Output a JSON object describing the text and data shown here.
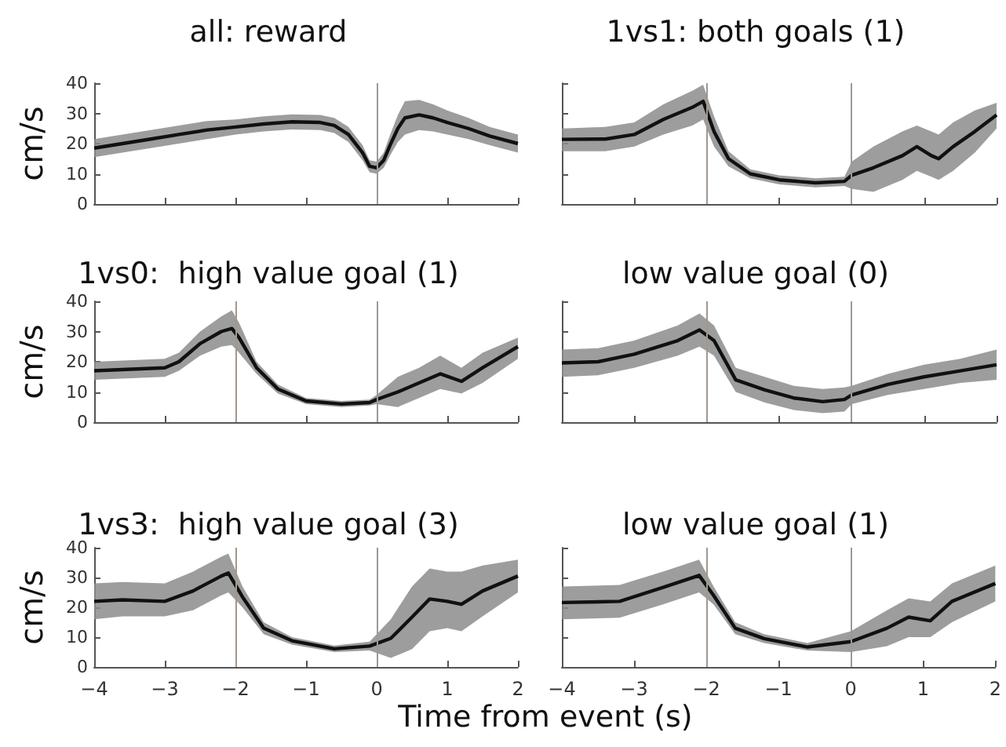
{
  "chart_data": [
    {
      "type": "line",
      "title": "all: reward",
      "ylabel": "cm/s",
      "xlim": [
        -4,
        2
      ],
      "ylim": [
        0,
        40
      ],
      "xticks": [
        -4,
        -3,
        -2,
        -1,
        0,
        1,
        2
      ],
      "yticks": [
        0,
        10,
        20,
        30,
        40
      ],
      "tick_labels": "y",
      "grid": false,
      "ref_lines": [
        {
          "axis": "x",
          "value": 0,
          "color": "#a09890"
        }
      ],
      "series": [
        {
          "color": "#111111",
          "x": [
            -4,
            -3.6,
            -3.2,
            -2.8,
            -2.4,
            -2,
            -1.6,
            -1.2,
            -0.8,
            -0.6,
            -0.4,
            -0.2,
            -0.1,
            0,
            0.1,
            0.2,
            0.3,
            0.4,
            0.6,
            0.8,
            1,
            1.3,
            1.6,
            2
          ],
          "values": [
            18.5,
            20,
            21.5,
            23,
            24.5,
            25.5,
            26.5,
            27.2,
            27,
            26,
            23,
            17,
            12.5,
            12,
            14.5,
            20,
            25,
            28.5,
            29.5,
            28.5,
            27,
            25,
            22.5,
            20
          ],
          "lower": [
            15.5,
            17,
            18.5,
            20,
            21.5,
            23,
            24,
            24.7,
            24.5,
            23.5,
            20.5,
            14.5,
            10.5,
            10,
            12,
            16.5,
            20.5,
            23,
            24.5,
            24,
            23,
            21.5,
            19.5,
            17
          ],
          "upper": [
            21.5,
            23,
            24.5,
            26,
            27.5,
            28,
            29,
            29.7,
            29.5,
            28.5,
            25.5,
            19.5,
            14.5,
            14,
            17,
            23.5,
            29.5,
            34,
            34.5,
            33,
            31,
            28.5,
            25.5,
            23
          ]
        }
      ]
    },
    {
      "type": "line",
      "title": "1vs1: both goals (1)",
      "xlim": [
        -4,
        2
      ],
      "ylim": [
        0,
        40
      ],
      "xticks": [
        -4,
        -3,
        -2,
        -1,
        0,
        1,
        2
      ],
      "yticks": [
        0,
        10,
        20,
        30,
        40
      ],
      "tick_labels": false,
      "grid": false,
      "ref_lines": [
        {
          "axis": "x",
          "value": -2,
          "color": "#a09890"
        },
        {
          "axis": "x",
          "value": 0,
          "color": "#a09890"
        }
      ],
      "series": [
        {
          "color": "#111111",
          "x": [
            -4,
            -3.4,
            -3,
            -2.6,
            -2.2,
            -2.05,
            -1.9,
            -1.7,
            -1.4,
            -1,
            -0.5,
            -0.1,
            0,
            0.3,
            0.7,
            0.9,
            1.1,
            1.2,
            1.4,
            1.7,
            2
          ],
          "values": [
            21.4,
            21.5,
            23,
            28,
            32,
            34,
            24,
            15,
            10,
            8,
            7,
            7.5,
            9.5,
            12,
            16,
            19,
            16,
            15,
            19,
            24,
            29.5
          ],
          "lower": [
            17.5,
            17.5,
            19,
            23,
            26,
            28,
            19,
            12.5,
            8.5,
            6.5,
            5.5,
            6,
            5,
            4,
            8,
            11,
            9,
            8,
            11,
            17,
            25
          ],
          "upper": [
            25,
            25.5,
            27,
            33,
            37.5,
            39.5,
            29,
            17.5,
            11.5,
            9.5,
            8.5,
            9,
            14,
            19,
            24,
            26,
            24,
            23,
            27,
            31,
            33.5
          ]
        }
      ]
    },
    {
      "type": "line",
      "title": "1vs0:  high value goal (1)",
      "ylabel": "cm/s",
      "xlim": [
        -4,
        2
      ],
      "ylim": [
        0,
        40
      ],
      "xticks": [
        -4,
        -3,
        -2,
        -1,
        0,
        1,
        2
      ],
      "yticks": [
        0,
        10,
        20,
        30,
        40
      ],
      "tick_labels": "y",
      "grid": false,
      "ref_lines": [
        {
          "axis": "x",
          "value": -2,
          "color": "#a09890"
        },
        {
          "axis": "x",
          "value": 0,
          "color": "#a09890"
        }
      ],
      "series": [
        {
          "color": "#111111",
          "x": [
            -4,
            -3,
            -2.8,
            -2.5,
            -2.2,
            -2.05,
            -1.95,
            -1.7,
            -1.4,
            -1,
            -0.5,
            -0.1,
            0,
            0.3,
            0.6,
            0.9,
            1.2,
            1.5,
            2
          ],
          "values": [
            17,
            18,
            20,
            26,
            30,
            31,
            28,
            18,
            11,
            7,
            6,
            6.5,
            7.5,
            10,
            13,
            16,
            13.5,
            18,
            25
          ],
          "lower": [
            14,
            15,
            17,
            22,
            25,
            25.5,
            23,
            16,
            9.5,
            6,
            5,
            5.5,
            6,
            5,
            8,
            11,
            9.5,
            13,
            21
          ],
          "upper": [
            20,
            21,
            23,
            30,
            35,
            37,
            33,
            20,
            12.5,
            8,
            7,
            7.5,
            9,
            15,
            18,
            22,
            18,
            23,
            28
          ]
        }
      ]
    },
    {
      "type": "line",
      "title": "low value goal (0)",
      "xlim": [
        -4,
        2
      ],
      "ylim": [
        0,
        40
      ],
      "xticks": [
        -4,
        -3,
        -2,
        -1,
        0,
        1,
        2
      ],
      "yticks": [
        0,
        10,
        20,
        30,
        40
      ],
      "tick_labels": false,
      "grid": false,
      "ref_lines": [
        {
          "axis": "x",
          "value": -2,
          "color": "#a09890"
        },
        {
          "axis": "x",
          "value": 0,
          "color": "#a09890"
        }
      ],
      "series": [
        {
          "color": "#111111",
          "x": [
            -4,
            -3.5,
            -3,
            -2.4,
            -2.1,
            -1.9,
            -1.6,
            -1.2,
            -0.8,
            -0.4,
            -0.1,
            0,
            0.5,
            1,
            1.5,
            2
          ],
          "values": [
            19.6,
            20,
            22.5,
            27,
            30.5,
            27,
            14,
            10.7,
            8,
            6.8,
            7.5,
            9,
            12.5,
            15,
            17,
            19
          ],
          "lower": [
            15,
            15.5,
            18,
            22,
            25,
            22,
            10,
            6.5,
            4,
            3,
            3.5,
            6,
            9,
            11,
            13,
            14
          ],
          "upper": [
            24,
            24.5,
            27,
            32,
            36,
            32,
            18,
            15,
            12,
            11,
            11.5,
            12,
            16,
            19,
            21,
            24
          ]
        }
      ]
    },
    {
      "type": "line",
      "title": "1vs3:  high value goal (3)",
      "ylabel": "cm/s",
      "xlabel": "Time from event (s)",
      "xlim": [
        -4,
        2
      ],
      "ylim": [
        0,
        40
      ],
      "xticks": [
        -4,
        -3,
        -2,
        -1,
        0,
        1,
        2
      ],
      "yticks": [
        0,
        10,
        20,
        30,
        40
      ],
      "grid": false,
      "ref_lines": [
        {
          "axis": "x",
          "value": -2,
          "color": "#a09890"
        },
        {
          "axis": "x",
          "value": 0,
          "color": "#a09890"
        }
      ],
      "series": [
        {
          "color": "#111111",
          "x": [
            -4,
            -3.6,
            -3,
            -2.6,
            -2.2,
            -2.1,
            -1.9,
            -1.6,
            -1.2,
            -0.6,
            -0.1,
            0.2,
            0.5,
            0.75,
            1,
            1.2,
            1.5,
            2
          ],
          "values": [
            22,
            22.5,
            22,
            25.5,
            30.5,
            31.5,
            23.5,
            13,
            8.8,
            6.1,
            7,
            9.6,
            16.7,
            22.8,
            22,
            21,
            25.5,
            30.5
          ],
          "lower": [
            16,
            17,
            17,
            19,
            24,
            25,
            20,
            11,
            7.5,
            5,
            5.5,
            3,
            6,
            12,
            13,
            12,
            17,
            25
          ],
          "upper": [
            28,
            28.5,
            28,
            32,
            37,
            38,
            27,
            15,
            10,
            7.2,
            8.5,
            16,
            27,
            33,
            32,
            32,
            34,
            36
          ]
        }
      ]
    },
    {
      "type": "line",
      "title": "low value goal (1)",
      "xlim": [
        -4,
        2
      ],
      "ylim": [
        0,
        40
      ],
      "xticks": [
        -4,
        -3,
        -2,
        -1,
        0,
        1,
        2
      ],
      "yticks": [
        0,
        10,
        20,
        30,
        40
      ],
      "tick_labels": "x",
      "grid": false,
      "ref_lines": [
        {
          "axis": "x",
          "value": -2,
          "color": "#a09890"
        },
        {
          "axis": "x",
          "value": 0,
          "color": "#a09890"
        }
      ],
      "series": [
        {
          "color": "#111111",
          "x": [
            -4,
            -3.2,
            -2.6,
            -2.1,
            -1.9,
            -1.6,
            -1.2,
            -0.6,
            0,
            0.5,
            0.8,
            1.1,
            1.4,
            2
          ],
          "values": [
            21.6,
            22,
            26.7,
            30.7,
            24,
            13,
            9.5,
            6.7,
            8.5,
            13,
            16.7,
            15.5,
            22,
            28
          ],
          "lower": [
            16,
            16.5,
            21,
            25,
            21,
            11,
            8,
            5.5,
            5,
            7,
            10,
            10,
            15,
            22
          ],
          "upper": [
            27,
            27.5,
            32,
            36,
            27,
            15,
            11,
            8,
            12,
            19,
            23,
            22,
            28,
            34
          ]
        }
      ]
    }
  ]
}
